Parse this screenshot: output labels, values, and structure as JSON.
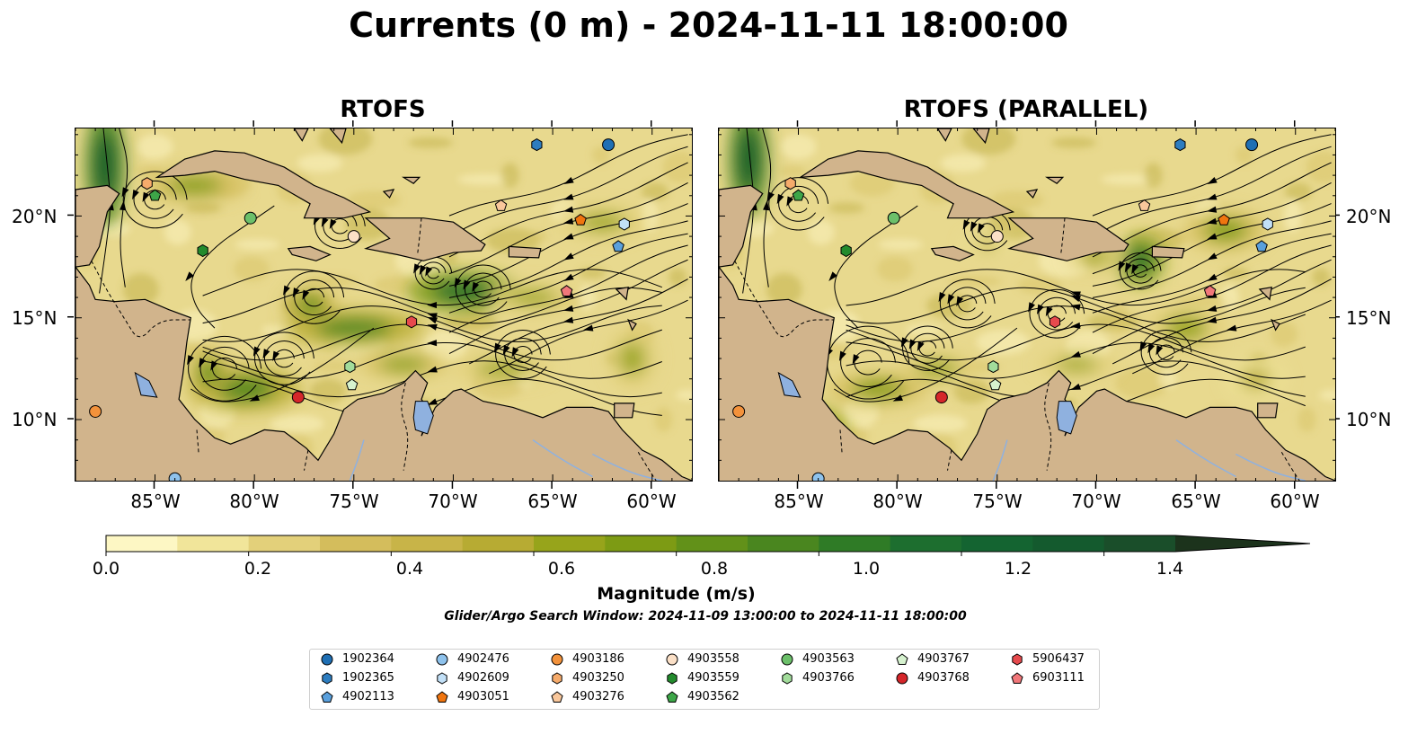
{
  "title": "Currents (0 m) - 2024-11-11 18:00:00",
  "panels": [
    {
      "title": "RTOFS"
    },
    {
      "title": "RTOFS (PARALLEL)"
    }
  ],
  "axes": {
    "lat_ticks": [
      "20°N",
      "15°N",
      "10°N"
    ],
    "lon_ticks": [
      "85°W",
      "80°W",
      "75°W",
      "70°W",
      "65°W",
      "60°W"
    ],
    "lon_range": [
      -89,
      -58
    ],
    "lat_range": [
      7,
      24.3
    ]
  },
  "colorbar": {
    "label": "Magnitude (m/s)",
    "ticks": [
      "0.0",
      "0.2",
      "0.4",
      "0.6",
      "0.8",
      "1.0",
      "1.2",
      "1.4"
    ],
    "range": [
      0,
      1.5
    ],
    "extend": "max",
    "colors": [
      "#fdf7c4",
      "#f1e59a",
      "#e3d07a",
      "#d4bd5c",
      "#c8b448",
      "#b7ab33",
      "#97a41b",
      "#7d9b14",
      "#629119",
      "#4a861f",
      "#2f7b26",
      "#1d6e2f",
      "#146431",
      "#145a2e",
      "#1a4e2a",
      "#1d4224",
      "#1c331c"
    ]
  },
  "window_note": "Glider/Argo Search Window: 2024-11-09 13:00:00 to 2024-11-11 18:00:00",
  "legend": [
    {
      "id": "1902364",
      "color": "#1f6fb4",
      "marker": "circle"
    },
    {
      "id": "1902365",
      "color": "#2d7dc0",
      "marker": "hexagon"
    },
    {
      "id": "4902113",
      "color": "#5aa0dd",
      "marker": "pentagon"
    },
    {
      "id": "4902476",
      "color": "#8ec2ec",
      "marker": "circle"
    },
    {
      "id": "4902609",
      "color": "#c2e0f7",
      "marker": "hexagon"
    },
    {
      "id": "4903051",
      "color": "#f0750f",
      "marker": "pentagon"
    },
    {
      "id": "4903186",
      "color": "#f3923b",
      "marker": "circle"
    },
    {
      "id": "4903250",
      "color": "#f6ab6b",
      "marker": "hexagon"
    },
    {
      "id": "4903276",
      "color": "#f9c79b",
      "marker": "pentagon"
    },
    {
      "id": "4903558",
      "color": "#fbe0c7",
      "marker": "circle"
    },
    {
      "id": "4903559",
      "color": "#238b2d",
      "marker": "hexagon"
    },
    {
      "id": "4903562",
      "color": "#3da648",
      "marker": "pentagon"
    },
    {
      "id": "4903563",
      "color": "#6cc06a",
      "marker": "circle"
    },
    {
      "id": "4903766",
      "color": "#a2dc9b",
      "marker": "hexagon"
    },
    {
      "id": "4903767",
      "color": "#d6f2cf",
      "marker": "pentagon"
    },
    {
      "id": "4903768",
      "color": "#d5262a",
      "marker": "circle"
    },
    {
      "id": "5906437",
      "color": "#e64a4d",
      "marker": "hexagon"
    },
    {
      "id": "6903111",
      "color": "#f1777a",
      "marker": "pentagon"
    }
  ],
  "colors": {
    "land": "#d1b48c",
    "lake": "#8fb1df",
    "ocean_base": "#e8d98e"
  },
  "float_positions": {
    "left": [
      {
        "id": "1902364",
        "lon": -62.2,
        "lat": 23.5
      },
      {
        "id": "1902365",
        "lon": -65.8,
        "lat": 23.5
      },
      {
        "id": "4902113",
        "lon": -61.7,
        "lat": 18.5
      },
      {
        "id": "4902609",
        "lon": -61.4,
        "lat": 19.6
      },
      {
        "id": "4903051",
        "lon": -63.6,
        "lat": 19.8
      },
      {
        "id": "4903276",
        "lon": -67.6,
        "lat": 20.5
      },
      {
        "id": "4903250",
        "lon": -85.4,
        "lat": 21.6
      },
      {
        "id": "4903562",
        "lon": -85.0,
        "lat": 21.0
      },
      {
        "id": "4903563",
        "lon": -80.2,
        "lat": 19.9
      },
      {
        "id": "4903559",
        "lon": -82.6,
        "lat": 18.3
      },
      {
        "id": "4903558",
        "lon": -75.0,
        "lat": 19.0
      },
      {
        "id": "6903111",
        "lon": -64.3,
        "lat": 16.3
      },
      {
        "id": "5906437",
        "lon": -72.1,
        "lat": 14.8
      },
      {
        "id": "4903766",
        "lon": -75.2,
        "lat": 12.6
      },
      {
        "id": "4903767",
        "lon": -75.1,
        "lat": 11.7
      },
      {
        "id": "4903768",
        "lon": -77.8,
        "lat": 11.1
      },
      {
        "id": "4903186",
        "lon": -88.0,
        "lat": 10.4
      },
      {
        "id": "4902476",
        "lon": -84.0,
        "lat": 7.1
      }
    ],
    "right": [
      {
        "id": "1902364",
        "lon": -62.2,
        "lat": 23.5
      },
      {
        "id": "1902365",
        "lon": -65.8,
        "lat": 23.5
      },
      {
        "id": "4902113",
        "lon": -61.7,
        "lat": 18.5
      },
      {
        "id": "4902609",
        "lon": -61.4,
        "lat": 19.6
      },
      {
        "id": "4903051",
        "lon": -63.6,
        "lat": 19.8
      },
      {
        "id": "4903276",
        "lon": -67.6,
        "lat": 20.5
      },
      {
        "id": "4903250",
        "lon": -85.4,
        "lat": 21.6
      },
      {
        "id": "4903562",
        "lon": -85.0,
        "lat": 21.0
      },
      {
        "id": "4903563",
        "lon": -80.2,
        "lat": 19.9
      },
      {
        "id": "4903559",
        "lon": -82.6,
        "lat": 18.3
      },
      {
        "id": "4903558",
        "lon": -75.0,
        "lat": 19.0
      },
      {
        "id": "6903111",
        "lon": -64.3,
        "lat": 16.3
      },
      {
        "id": "5906437",
        "lon": -72.1,
        "lat": 14.8
      },
      {
        "id": "4903766",
        "lon": -75.2,
        "lat": 12.6
      },
      {
        "id": "4903767",
        "lon": -75.1,
        "lat": 11.7
      },
      {
        "id": "4903768",
        "lon": -77.8,
        "lat": 11.1
      },
      {
        "id": "4903186",
        "lon": -88.0,
        "lat": 10.4
      },
      {
        "id": "4902476",
        "lon": -84.0,
        "lat": 7.1
      }
    ]
  }
}
